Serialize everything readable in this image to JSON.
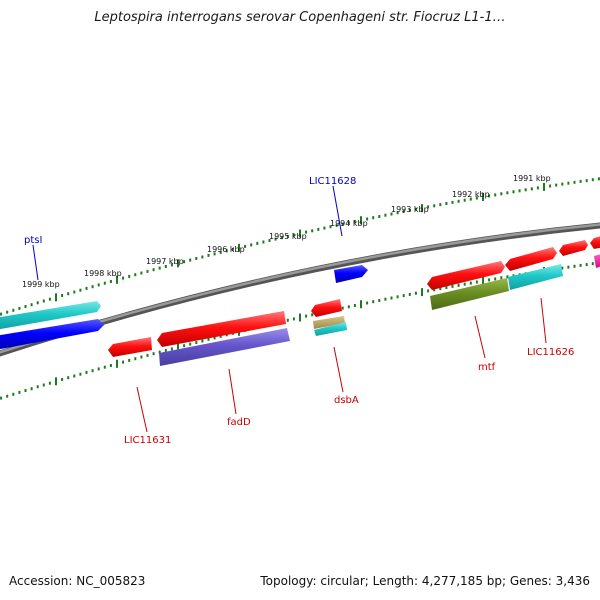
{
  "title": "Leptospira interrogans serovar Copenhageni str. Fiocruz L1-1…",
  "footer": {
    "accession": "Accession: NC_005823",
    "summary": "Topology: circular; Length: 4,277,185 bp; Genes: 3,436"
  },
  "scale": {
    "labels": [
      "1999 kbp",
      "1998 kbp",
      "1997 kbp",
      "1996 kbp",
      "1995 kbp",
      "1994 kbp",
      "1993 kbp",
      "1992 kbp",
      "1991 kbp"
    ]
  },
  "genes": [
    {
      "name": "ptsI",
      "color": "#0000cc"
    },
    {
      "name": "LIC11628",
      "color": "#0000cc"
    },
    {
      "name": "LIC11631",
      "color": "#cc0000"
    },
    {
      "name": "fadD",
      "color": "#cc0000"
    },
    {
      "name": "dsbA",
      "color": "#cc0000"
    },
    {
      "name": "mtf",
      "color": "#cc0000"
    },
    {
      "name": "LIC11626",
      "color": "#cc0000"
    }
  ],
  "colors": {
    "backbone": "#7f7f7f",
    "ticks": "#1f7a1f",
    "red_feature": "#ff1a1a",
    "blue_feature": "#0000ff",
    "cyan_feature": "#22cccc",
    "purple_feature": "#6655cc",
    "olive_feature": "#6b8e23",
    "magenta_feature": "#ee1199"
  }
}
